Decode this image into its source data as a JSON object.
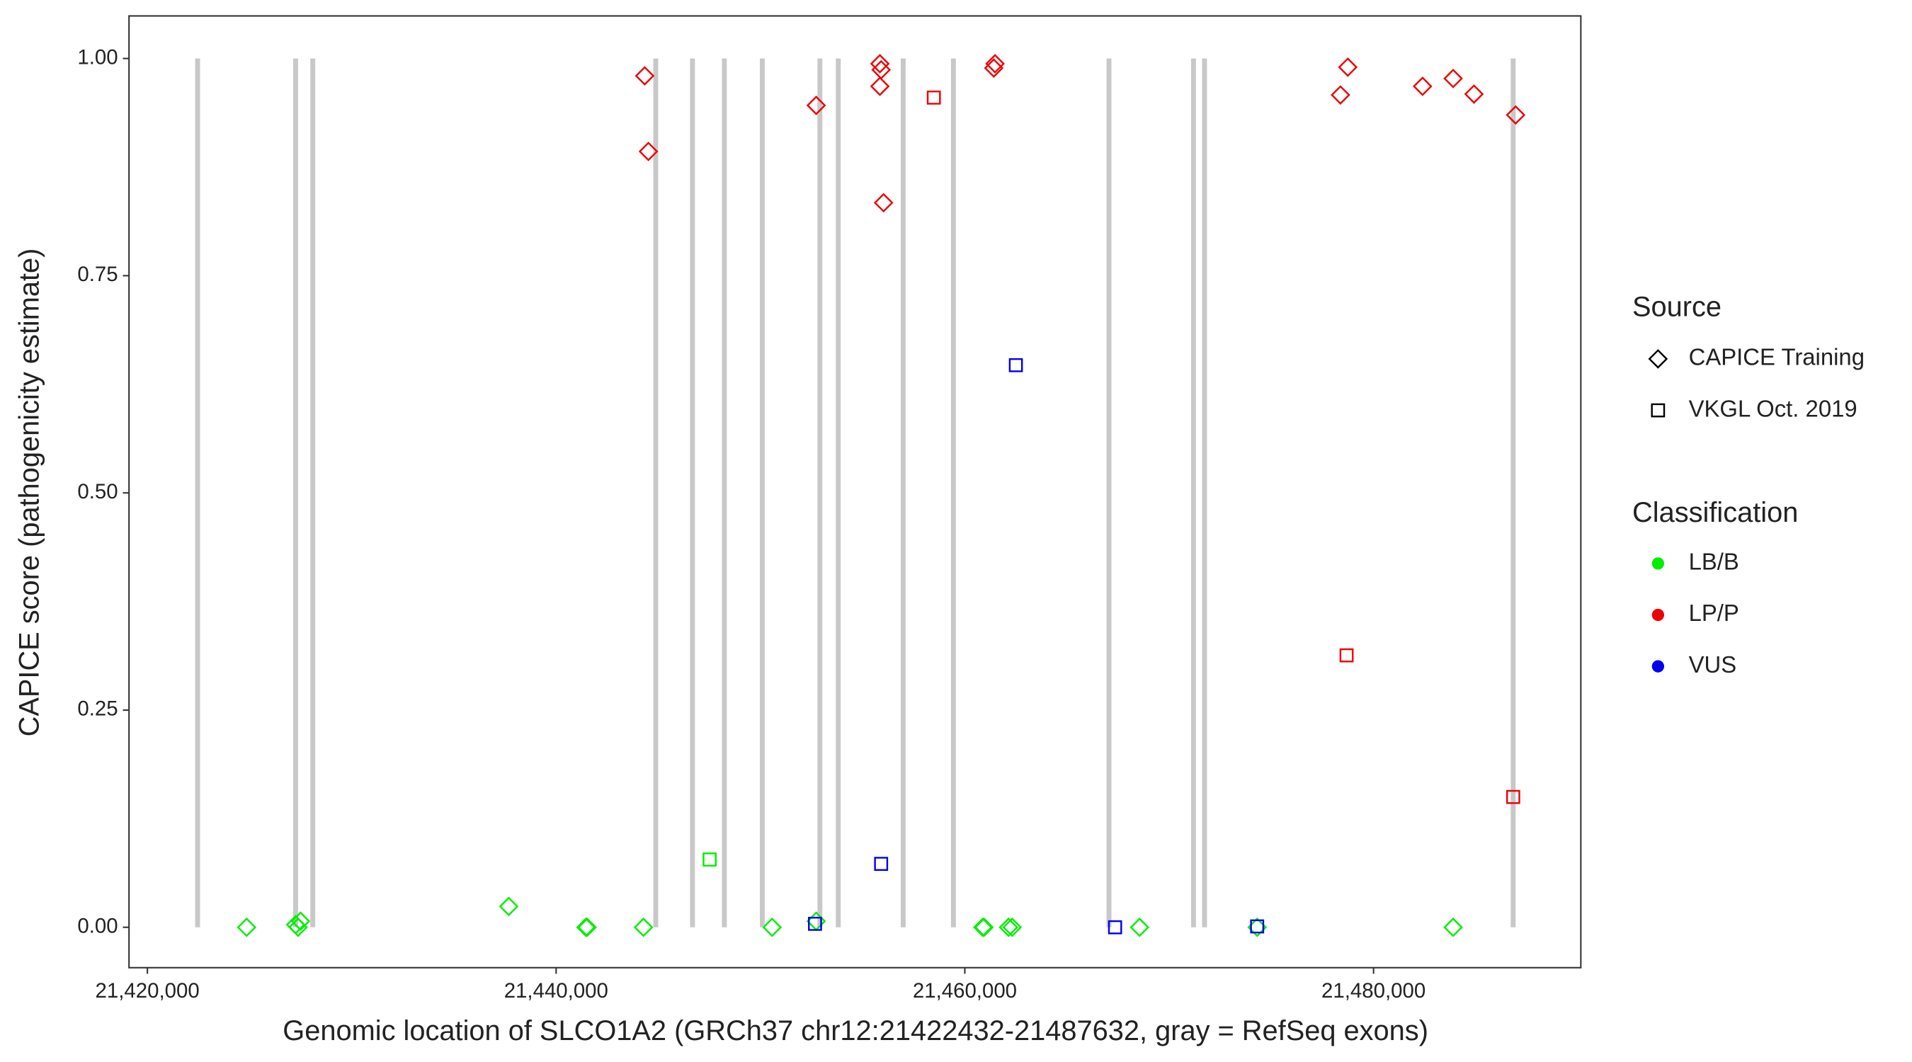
{
  "chart_data": {
    "type": "scatter",
    "x_label": "Genomic location of SLCO1A2 (GRCh37 chr12:21422432-21487632, gray = RefSeq exons)",
    "y_label": "CAPICE score (pathogenicity estimate)",
    "xlim": [
      21419100,
      21490144
    ],
    "ylim": [
      -0.0465,
      1.049
    ],
    "xticks": [
      {
        "value": 21420000,
        "label": "21,420,000"
      },
      {
        "value": 21440000,
        "label": "21,440,000"
      },
      {
        "value": 21460000,
        "label": "21,460,000"
      },
      {
        "value": 21480000,
        "label": "21,480,000"
      }
    ],
    "yticks": [
      {
        "value": 0,
        "label": "0.00"
      },
      {
        "value": 0.25,
        "label": "0.25"
      },
      {
        "value": 0.5,
        "label": "0.50"
      },
      {
        "value": 0.75,
        "label": "0.75"
      },
      {
        "value": 1,
        "label": "1.00"
      }
    ],
    "grid": false,
    "exons": [
      21422457,
      21427253,
      21428092,
      21444875,
      21446674,
      21448232,
      21450090,
      21452908,
      21453807,
      21456984,
      21459441,
      21467054,
      21471190,
      21471729,
      21486834
    ],
    "exon_color": "#c8c8c8",
    "source_legend": {
      "title": "Source",
      "items": [
        {
          "name": "CAPICE Training",
          "shape": "diamond"
        },
        {
          "name": "VKGL Oct. 2019",
          "shape": "square"
        }
      ]
    },
    "classification_legend": {
      "title": "Classification",
      "items": [
        {
          "name": "LB/B",
          "color": "#00ee00"
        },
        {
          "name": "LP/P",
          "color": "#ee0000"
        },
        {
          "name": "VUS",
          "color": "#0000ee"
        }
      ]
    },
    "series": [
      {
        "source": "CAPICE Training",
        "classification": "LB/B",
        "color": "#00ee00",
        "shape": "diamond",
        "x": [
          21424855,
          21427373,
          21427493,
          21427253,
          21437682,
          21441458,
          21441518,
          21444276,
          21450570,
          21452728,
          21460880,
          21460940,
          21462138,
          21462318,
          21468551,
          21474305,
          21483896
        ],
        "values": [
          0,
          0,
          0.007,
          0.003,
          0.024,
          0,
          0,
          0,
          0,
          0.007,
          0,
          0,
          0,
          0,
          0,
          0,
          0
        ]
      },
      {
        "source": "VKGL Oct. 2019",
        "classification": "LB/B",
        "color": "#00ee00",
        "shape": "square",
        "x": [
          21447512
        ],
        "values": [
          0.078
        ]
      },
      {
        "source": "VKGL Oct. 2019",
        "classification": "VUS",
        "color": "#0000ee",
        "shape": "square",
        "x": [
          21452668,
          21455904,
          21462498,
          21467353,
          21474305
        ],
        "values": [
          0.004,
          0.073,
          0.647,
          0,
          0.001
        ]
      },
      {
        "source": "CAPICE Training",
        "classification": "LP/P",
        "color": "#ee0000",
        "shape": "diamond",
        "x": [
          21444336,
          21444516,
          21452728,
          21455844,
          21455904,
          21455844,
          21456024,
          21461478,
          21461418,
          21478741,
          21478381,
          21482398,
          21483896,
          21484915,
          21486953
        ],
        "values": [
          0.98,
          0.893,
          0.946,
          0.994,
          0.987,
          0.968,
          0.834,
          0.994,
          0.989,
          0.99,
          0.958,
          0.968,
          0.977,
          0.959,
          0.935
        ]
      },
      {
        "source": "VKGL Oct. 2019",
        "classification": "LP/P",
        "color": "#ee0000",
        "shape": "square",
        "x": [
          21458483,
          21478681,
          21486834
        ],
        "values": [
          0.955,
          0.313,
          0.15
        ]
      }
    ]
  }
}
